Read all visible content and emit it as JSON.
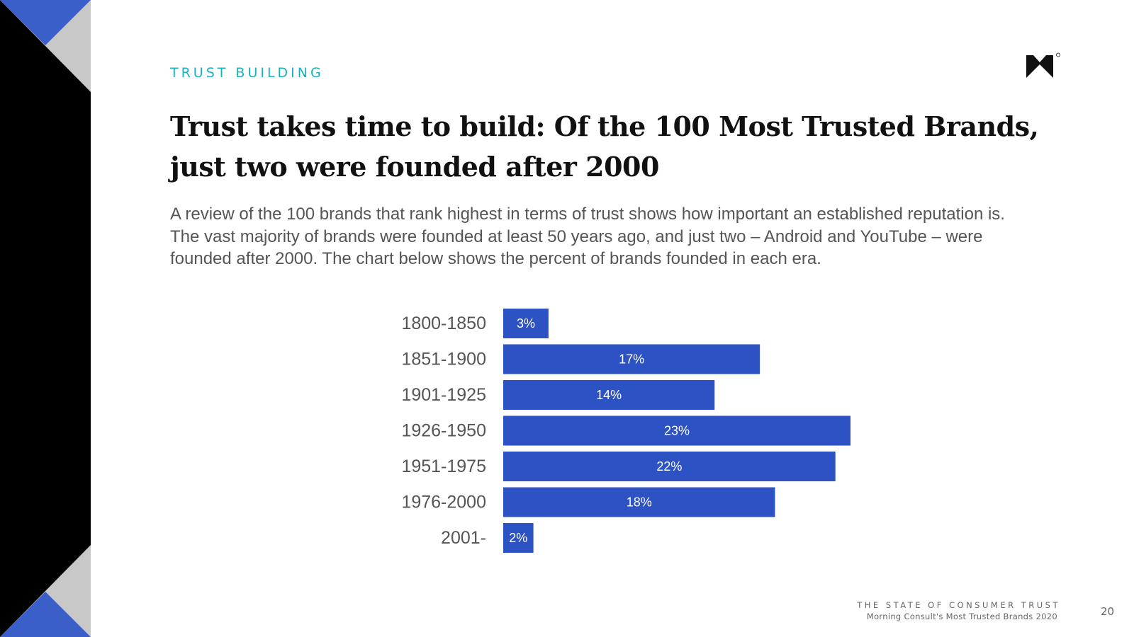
{
  "header": {
    "section_label": "TRUST BUILDING",
    "title": "Trust takes time to build: Of the 100 Most Trusted Brands, just two were founded after 2000",
    "body": "A review of the 100 brands that rank highest in terms of trust shows how important an established reputation is. The vast majority of brands were founded at least 50 years ago, and just two – Android and YouTube – were founded after 2000.  The chart below shows the percent of brands founded in each era."
  },
  "footer": {
    "report_title": "THE STATE OF CONSUMER TRUST",
    "subtitle": "Morning Consult's Most Trusted Brands 2020",
    "page_number": "20"
  },
  "colors": {
    "accent": "#1bb3c0",
    "bar": "#2d52c4",
    "band_blue": "#3a5fc8",
    "band_gray": "#c8c8c8",
    "band_black": "#000000"
  },
  "chart_data": {
    "type": "bar",
    "orientation": "horizontal",
    "categories": [
      "1800-1850",
      "1851-1900",
      "1901-1925",
      "1926-1950",
      "1951-1975",
      "1976-2000",
      "2001-"
    ],
    "values": [
      3,
      17,
      14,
      23,
      22,
      18,
      2
    ],
    "value_labels": [
      "3%",
      "17%",
      "14%",
      "23%",
      "22%",
      "18%",
      "2%"
    ],
    "unit": "%",
    "xlim": [
      0,
      23
    ],
    "title": "",
    "xlabel": "",
    "ylabel": "",
    "grid": false,
    "legend": "none"
  }
}
